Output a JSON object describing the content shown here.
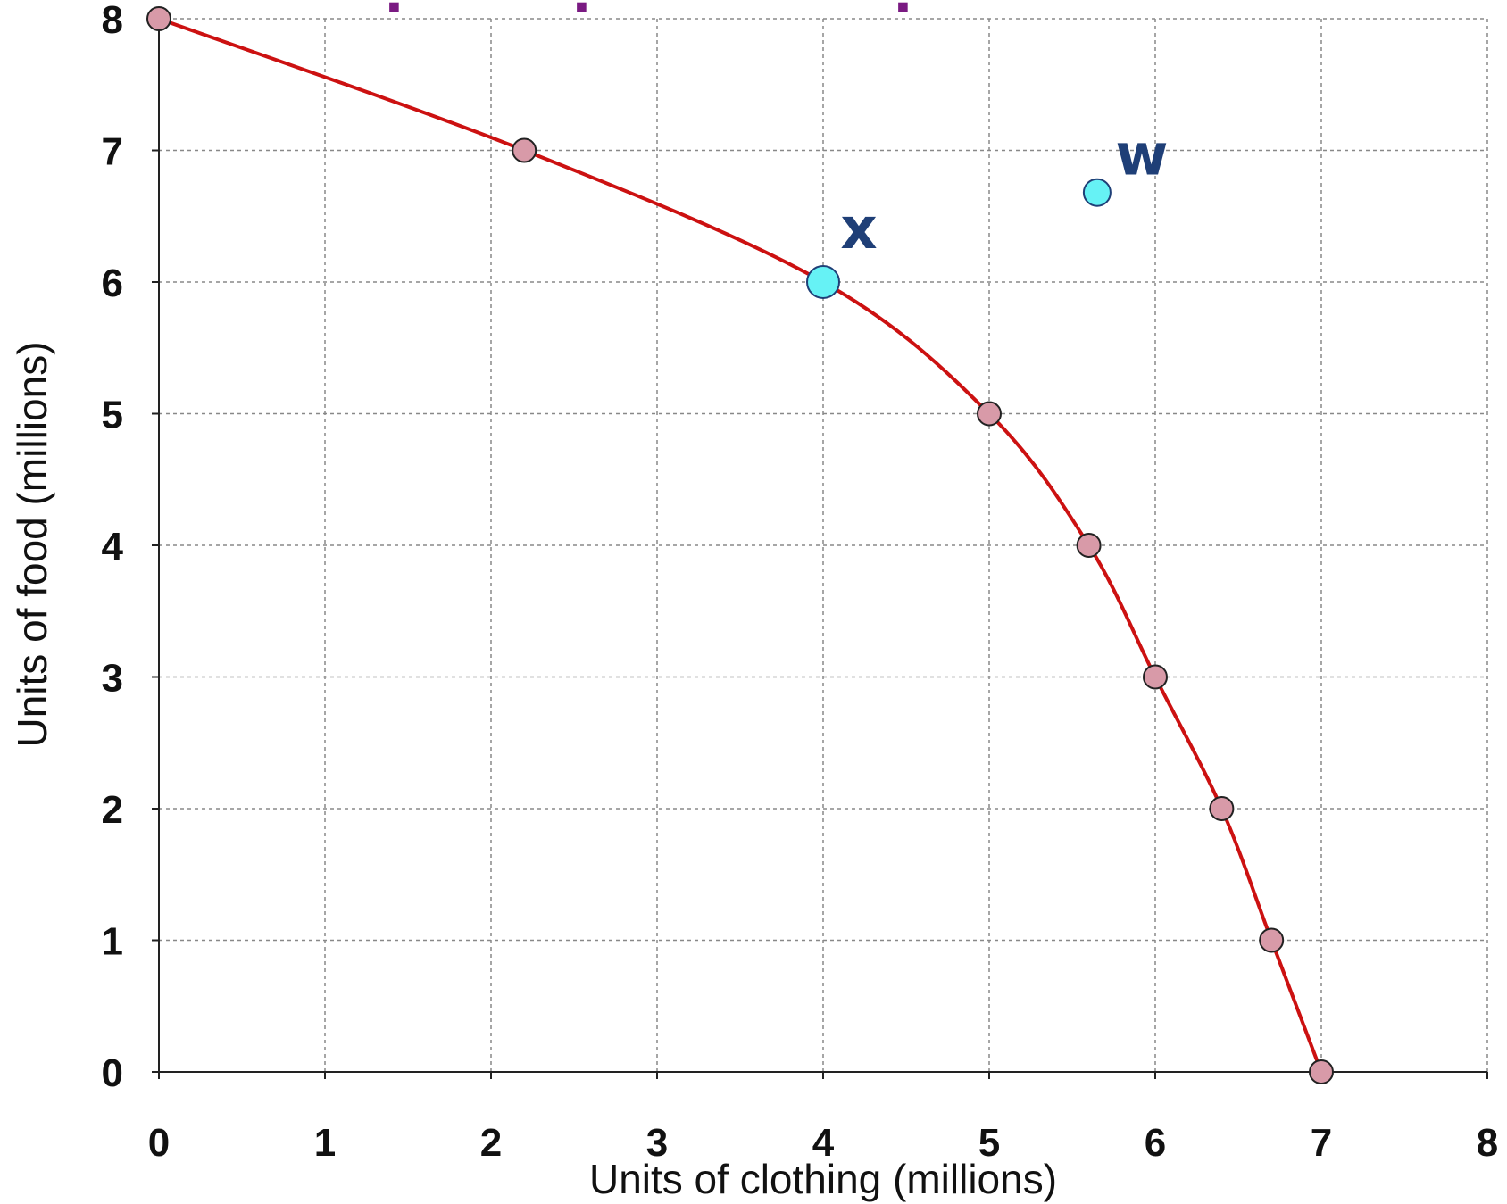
{
  "chart_data": {
    "type": "line",
    "xlabel": "Units of clothing (millions)",
    "ylabel": "Units of food (millions)",
    "xlim": [
      0,
      8
    ],
    "ylim": [
      0,
      8
    ],
    "x_ticks": [
      "0",
      "1",
      "2",
      "3",
      "4",
      "5",
      "6",
      "7",
      "8"
    ],
    "y_ticks": [
      "0",
      "1",
      "2",
      "3",
      "4",
      "5",
      "6",
      "7",
      "8"
    ],
    "grid": true,
    "series": [
      {
        "color": "#cc1111",
        "marker_color": "#d89aa8",
        "x": [
          0,
          2.2,
          4,
          5,
          5.6,
          6,
          6.4,
          6.7,
          7
        ],
        "y": [
          8,
          7,
          6,
          5,
          4,
          3,
          2,
          1,
          0
        ]
      }
    ],
    "highlight_points": [
      {
        "label": "x",
        "x": 4,
        "y": 6,
        "color": "#66f2f5"
      },
      {
        "label": "w",
        "x": 5.65,
        "y": 6.68,
        "color": "#66f2f5"
      }
    ],
    "label_color": "#1f3f77"
  }
}
